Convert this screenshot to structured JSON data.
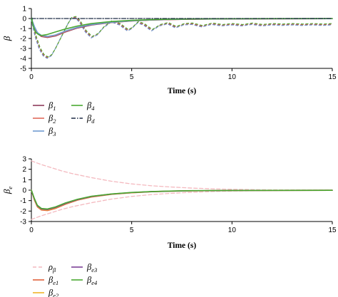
{
  "chart_data": [
    {
      "type": "line",
      "ylabel_main": "β",
      "ylabel_sub": "",
      "xlabel": "Time (s)",
      "xlim": [
        0,
        15
      ],
      "ylim": [
        -5,
        1
      ],
      "xticks": [
        0,
        5,
        10,
        15
      ],
      "yticks": [
        1,
        0,
        -1,
        -2,
        -3,
        -4,
        -5
      ],
      "series": [
        {
          "label_main": "β",
          "label_sub": "1",
          "color": "#8e3b5b",
          "dash": "solid",
          "x": [
            0,
            0.15,
            0.3,
            0.5,
            0.8,
            1.2,
            1.7,
            2.3,
            3,
            4,
            5,
            6,
            7,
            8,
            9,
            10,
            12,
            15
          ],
          "y": [
            0,
            -0.9,
            -1.5,
            -1.8,
            -1.9,
            -1.75,
            -1.35,
            -0.95,
            -0.65,
            -0.4,
            -0.25,
            -0.15,
            -0.1,
            -0.07,
            -0.05,
            -0.03,
            -0.02,
            -0.01
          ]
        },
        {
          "label_main": "β",
          "label_sub": "2",
          "color": "#e06a5c",
          "dash": "solid",
          "x": [
            0,
            0.15,
            0.3,
            0.5,
            0.8,
            1.2,
            1.7,
            2.3,
            3,
            4,
            5,
            6,
            7,
            8,
            9,
            10,
            12,
            15
          ],
          "y": [
            0,
            -0.85,
            -1.45,
            -1.75,
            -1.85,
            -1.7,
            -1.3,
            -0.9,
            -0.6,
            -0.38,
            -0.24,
            -0.15,
            -0.1,
            -0.07,
            -0.05,
            -0.03,
            -0.02,
            -0.01
          ]
        },
        {
          "label_main": "β",
          "label_sub": "3",
          "color": "#6f9bd1",
          "dash": "solid",
          "x": [
            0,
            0.15,
            0.3,
            0.5,
            0.8,
            1.2,
            1.7,
            2.3,
            3,
            4,
            5,
            6,
            7,
            8,
            9,
            10,
            12,
            15
          ],
          "y": [
            0,
            -0.8,
            -1.4,
            -1.7,
            -1.8,
            -1.65,
            -1.25,
            -0.88,
            -0.6,
            -0.37,
            -0.23,
            -0.14,
            -0.09,
            -0.06,
            -0.04,
            -0.03,
            -0.02,
            -0.01
          ]
        },
        {
          "label_main": "β",
          "label_sub": "4",
          "color": "#4aa832",
          "dash": "solid",
          "x": [
            0,
            0.1,
            0.2,
            0.35,
            0.5,
            0.8,
            1.2,
            1.7,
            2.3,
            3,
            4,
            5,
            6,
            7,
            8,
            9,
            10,
            12,
            15
          ],
          "y": [
            0,
            -0.8,
            -1.35,
            -1.6,
            -1.7,
            -1.6,
            -1.35,
            -1.05,
            -0.75,
            -0.5,
            -0.3,
            -0.18,
            -0.11,
            -0.07,
            -0.04,
            -0.03,
            -0.02,
            -0.01,
            0
          ]
        },
        {
          "label_main": "β",
          "label_sub": "d",
          "color": "#1f2c46",
          "dash": "dashdot",
          "x": [
            0,
            15
          ],
          "y": [
            0,
            0
          ]
        }
      ],
      "reference_traces": [
        {
          "color": "#8e3b5b",
          "shift": 0.0
        },
        {
          "color": "#e06a5c",
          "shift": 0.05
        },
        {
          "color": "#6f9bd1",
          "shift": -0.05
        },
        {
          "color": "#4aa832",
          "shift": 0.1
        }
      ],
      "reference_path": {
        "x": [
          0,
          0.2,
          0.4,
          0.6,
          0.8,
          1.0,
          1.2,
          1.5,
          1.8,
          2.0,
          2.2,
          2.4,
          2.7,
          3.0,
          3.3,
          3.6,
          4.0,
          4.4,
          4.8,
          5.0,
          5.3,
          5.6,
          6.0,
          6.4,
          6.8,
          7.2,
          7.6,
          8.0,
          8.5,
          9.0,
          9.5,
          10.0,
          10.5,
          11.0,
          11.5,
          12.0,
          12.5,
          13.0,
          13.5,
          14.0,
          14.5,
          15.0
        ],
        "y": [
          0,
          -1.8,
          -3.0,
          -3.7,
          -3.95,
          -3.7,
          -3.0,
          -1.8,
          -0.6,
          0.05,
          0.1,
          -0.3,
          -1.3,
          -1.9,
          -1.6,
          -0.9,
          -0.3,
          -0.6,
          -1.2,
          -1.0,
          -0.4,
          -0.6,
          -1.2,
          -0.7,
          -0.5,
          -0.9,
          -0.6,
          -0.55,
          -0.8,
          -0.55,
          -0.7,
          -0.6,
          -0.7,
          -0.55,
          -0.7,
          -0.6,
          -0.65,
          -0.6,
          -0.65,
          -0.6,
          -0.65,
          -0.6
        ]
      },
      "legend": {
        "placement": "bottom-left",
        "columns": 2
      }
    },
    {
      "type": "line",
      "ylabel_main": "β",
      "ylabel_sub": "e",
      "xlabel": "Time (s)",
      "xlim": [
        0,
        15
      ],
      "ylim": [
        -3,
        3
      ],
      "xticks": [
        0,
        5,
        10,
        15
      ],
      "yticks": [
        3,
        2,
        1,
        0,
        -1,
        -2,
        -3
      ],
      "series": [
        {
          "label_main": "ρ",
          "label_sub": "β",
          "color": "#f4b9bf",
          "dash": "dashed",
          "x": [
            0,
            0.5,
            1,
            1.5,
            2,
            3,
            4,
            5,
            6,
            7,
            8,
            9,
            10,
            12,
            15
          ],
          "y": [
            2.8,
            2.45,
            2.15,
            1.85,
            1.6,
            1.2,
            0.85,
            0.6,
            0.42,
            0.3,
            0.2,
            0.13,
            0.08,
            0.03,
            0.01
          ]
        },
        {
          "label_main": "-ρ",
          "label_sub": "β",
          "color": "#f4b9bf",
          "dash": "dashed",
          "in_legend": false,
          "x": [
            0,
            0.5,
            1,
            1.5,
            2,
            3,
            4,
            5,
            6,
            7,
            8,
            9,
            10,
            12,
            15
          ],
          "y": [
            -2.8,
            -2.45,
            -2.15,
            -1.85,
            -1.6,
            -1.2,
            -0.85,
            -0.6,
            -0.42,
            -0.3,
            -0.2,
            -0.13,
            -0.08,
            -0.03,
            -0.01
          ]
        },
        {
          "label_main": "β",
          "label_sub": "e1",
          "color": "#e0603a",
          "dash": "solid",
          "x": [
            0,
            0.15,
            0.3,
            0.5,
            0.8,
            1.2,
            1.7,
            2.3,
            3,
            4,
            5,
            6,
            7,
            8,
            10,
            12,
            15
          ],
          "y": [
            0,
            -0.95,
            -1.6,
            -1.9,
            -1.95,
            -1.75,
            -1.35,
            -0.95,
            -0.65,
            -0.4,
            -0.25,
            -0.15,
            -0.1,
            -0.06,
            -0.03,
            -0.02,
            -0.01
          ]
        },
        {
          "label_main": "β",
          "label_sub": "e2",
          "color": "#f0b429",
          "dash": "solid",
          "x": [
            0,
            0.15,
            0.3,
            0.5,
            0.8,
            1.2,
            1.7,
            2.3,
            3,
            4,
            5,
            6,
            7,
            8,
            10,
            12,
            15
          ],
          "y": [
            0,
            -0.9,
            -1.55,
            -1.85,
            -1.9,
            -1.7,
            -1.3,
            -0.92,
            -0.62,
            -0.38,
            -0.24,
            -0.14,
            -0.09,
            -0.06,
            -0.03,
            -0.02,
            -0.01
          ]
        },
        {
          "label_main": "β",
          "label_sub": "e3",
          "color": "#7b3f98",
          "dash": "solid",
          "x": [
            0,
            0.15,
            0.3,
            0.5,
            0.8,
            1.2,
            1.7,
            2.3,
            3,
            4,
            5,
            6,
            7,
            8,
            10,
            12,
            15
          ],
          "y": [
            0,
            -0.85,
            -1.5,
            -1.8,
            -1.85,
            -1.65,
            -1.27,
            -0.9,
            -0.6,
            -0.37,
            -0.23,
            -0.14,
            -0.09,
            -0.06,
            -0.03,
            -0.02,
            -0.01
          ]
        },
        {
          "label_main": "β",
          "label_sub": "e4",
          "color": "#4aa832",
          "dash": "solid",
          "x": [
            0,
            0.15,
            0.3,
            0.5,
            0.8,
            1.2,
            1.7,
            2.3,
            3,
            4,
            5,
            6,
            7,
            8,
            10,
            12,
            15
          ],
          "y": [
            0,
            -0.8,
            -1.45,
            -1.75,
            -1.8,
            -1.6,
            -1.22,
            -0.87,
            -0.58,
            -0.36,
            -0.22,
            -0.13,
            -0.08,
            -0.05,
            -0.03,
            -0.02,
            -0.01
          ]
        }
      ],
      "legend": {
        "placement": "bottom-left",
        "columns": 2
      }
    }
  ]
}
